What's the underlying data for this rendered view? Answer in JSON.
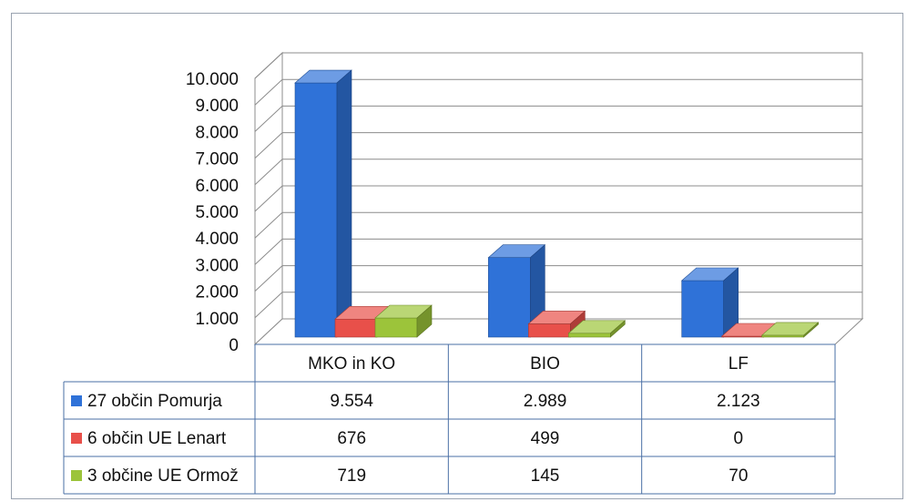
{
  "chart_data": {
    "type": "bar",
    "categories": [
      "MKO in KO",
      "BIO",
      "LF"
    ],
    "series": [
      {
        "name": "27 občin Pomurja",
        "values": [
          9554,
          2989,
          2123
        ],
        "labels": [
          "9.554",
          "2.989",
          "2.123"
        ],
        "color": "#2f72d8"
      },
      {
        "name": "6 občin UE Lenart",
        "values": [
          676,
          499,
          0
        ],
        "labels": [
          "676",
          "499",
          "0"
        ],
        "color": "#e8504a"
      },
      {
        "name": "3 občine UE Ormož",
        "values": [
          719,
          145,
          70
        ],
        "labels": [
          "719",
          "145",
          "70"
        ],
        "color": "#9cc43a"
      }
    ],
    "ylim": [
      0,
      10000
    ],
    "yticks": [
      0,
      1000,
      2000,
      3000,
      4000,
      5000,
      6000,
      7000,
      8000,
      9000,
      10000
    ],
    "ytick_labels": [
      "0",
      "1.000",
      "2.000",
      "3.000",
      "4.000",
      "5.000",
      "6.000",
      "7.000",
      "8.000",
      "9.000",
      "10.000"
    ],
    "grid": true,
    "style": "3d-column",
    "data_table": true
  }
}
